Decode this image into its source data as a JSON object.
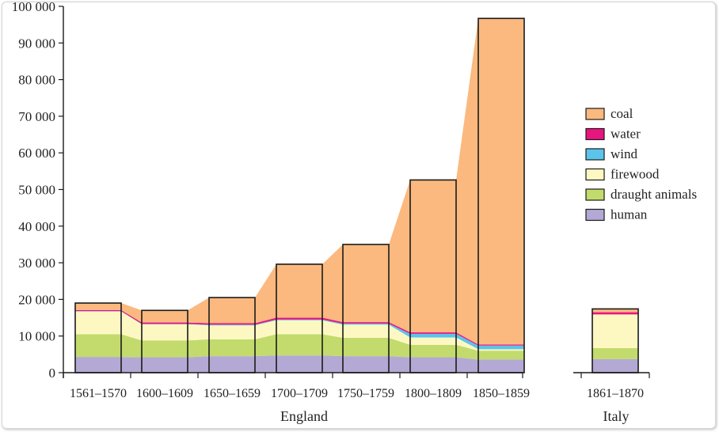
{
  "colors": {
    "coal": "#fbb97f",
    "water": "#e8157e",
    "wind": "#5bc4ea",
    "firewood": "#fdf8c2",
    "draught animals": "#c2db6c",
    "human": "#b3a9d4"
  },
  "chart_data": {
    "type": "bar",
    "stacked": true,
    "connected_areas": true,
    "ylim": [
      0,
      100000
    ],
    "yticks": [
      "0",
      "10 000",
      "20 000",
      "30 000",
      "40 000",
      "50 000",
      "60 000",
      "70 000",
      "80 000",
      "90 000",
      "100 000"
    ],
    "grid": false,
    "legend_position": "right",
    "groups": [
      {
        "label": "England",
        "categories": [
          "1561–1570",
          "1600–1609",
          "1650–1659",
          "1700–1709",
          "1750–1759",
          "1800–1809",
          "1850–1859"
        ]
      },
      {
        "label": "Italy",
        "categories": [
          "1861–1870"
        ]
      }
    ],
    "categories": [
      "1561–1570",
      "1600–1609",
      "1650–1659",
      "1700–1709",
      "1750–1759",
      "1800–1809",
      "1850–1859",
      "1861–1870"
    ],
    "series": [
      {
        "name": "human",
        "values": [
          4300,
          4200,
          4500,
          4700,
          4500,
          4200,
          3600,
          3700
        ]
      },
      {
        "name": "draught animals",
        "values": [
          6200,
          4600,
          4600,
          5800,
          5000,
          3400,
          2400,
          3000
        ]
      },
      {
        "name": "firewood",
        "values": [
          6200,
          4400,
          3800,
          3800,
          3600,
          2000,
          400,
          9200
        ]
      },
      {
        "name": "wind",
        "values": [
          100,
          100,
          200,
          200,
          300,
          1000,
          1000,
          0
        ]
      },
      {
        "name": "water",
        "values": [
          300,
          400,
          400,
          500,
          400,
          400,
          300,
          600
        ]
      },
      {
        "name": "coal",
        "values": [
          1900,
          3300,
          7000,
          14600,
          21200,
          41600,
          89000,
          900
        ]
      }
    ],
    "legend": [
      "coal",
      "water",
      "wind",
      "firewood",
      "draught animals",
      "human"
    ]
  }
}
